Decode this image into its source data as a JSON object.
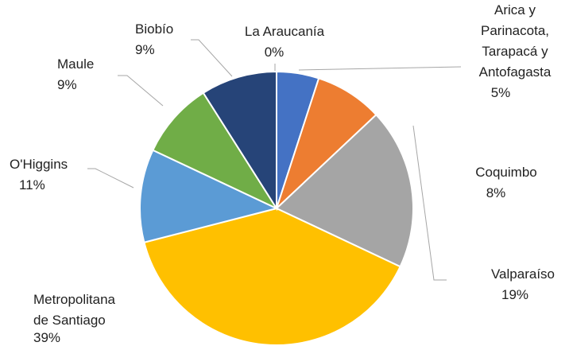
{
  "chart_data": {
    "type": "pie",
    "categories": [
      "Arica y\nParinacota,\nTarapacá  y\nAntofagasta",
      "Coquimbo",
      "Valparaíso",
      "Metropolitana\nde Santiago",
      "O'Higgins",
      "Maule",
      "Biobío",
      "La Araucanía"
    ],
    "values": [
      5,
      8,
      19,
      39,
      11,
      9,
      9,
      0
    ],
    "value_labels": [
      "5%",
      "8%",
      "19%",
      "39%",
      "11%",
      "9%",
      "9%",
      "0%"
    ],
    "colors": [
      "#4472c4",
      "#ed7d31",
      "#a5a5a5",
      "#ffc000",
      "#5b9bd5",
      "#70ad47",
      "#264478",
      "#9e480e"
    ]
  }
}
